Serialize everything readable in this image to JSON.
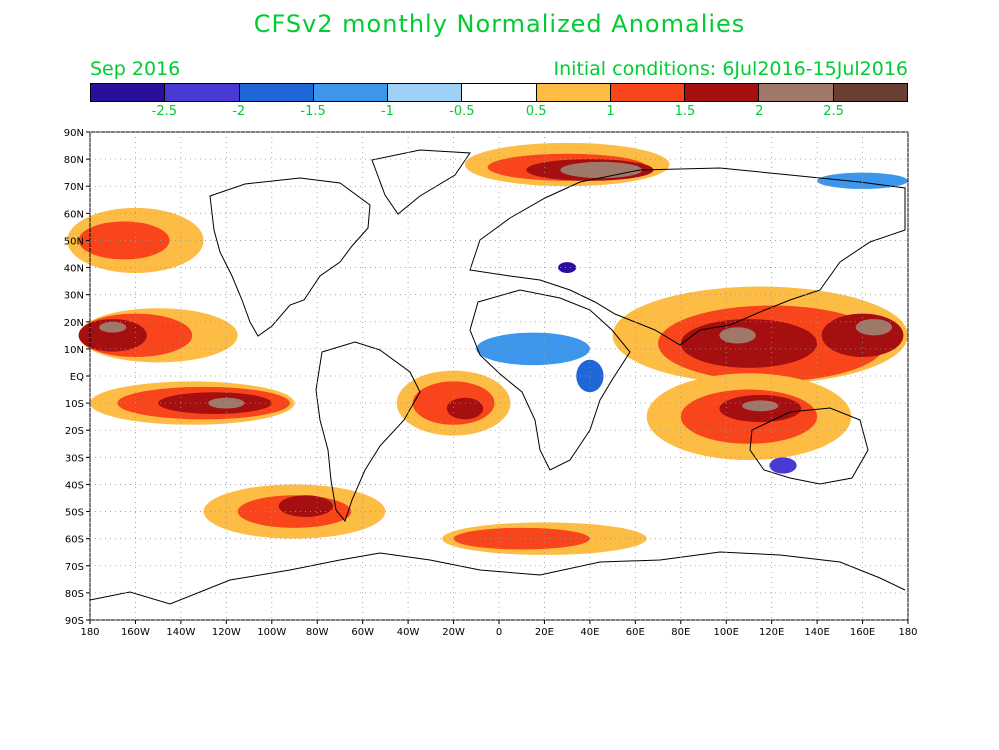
{
  "title": "CFSv2 monthly Normalized Anomalies",
  "valid_month": "Sep 2016",
  "initial_conditions": "Initial conditions: 6Jul2016-15Jul2016",
  "colorbar": {
    "colors": [
      "#2a0f9c",
      "#4a3ad4",
      "#1f66d6",
      "#3c96ec",
      "#9fd1f7",
      "#ffffff",
      "#fdbc44",
      "#f8451b",
      "#a50f0f",
      "#a0786a",
      "#6a3f33"
    ],
    "labels": [
      "-2.5",
      "-2",
      "-1.5",
      "-1",
      "-0.5",
      "0.5",
      "1",
      "1.5",
      "2",
      "2.5"
    ]
  },
  "map": {
    "lat_labels": [
      "90N",
      "80N",
      "70N",
      "60N",
      "50N",
      "40N",
      "30N",
      "20N",
      "10N",
      "EQ",
      "10S",
      "20S",
      "30S",
      "40S",
      "50S",
      "60S",
      "70S",
      "80S",
      "90S"
    ],
    "lon_labels": [
      "180",
      "160W",
      "140W",
      "120W",
      "100W",
      "80W",
      "60W",
      "40W",
      "20W",
      "0",
      "20E",
      "40E",
      "60E",
      "80E",
      "100E",
      "120E",
      "140E",
      "160E",
      "180"
    ],
    "lon_range": [
      -180,
      180
    ],
    "lat_range": [
      -90,
      90
    ],
    "grid": "dotted",
    "anomaly_regions": [
      {
        "level": "1",
        "lon": -135,
        "lat": -10,
        "rlon": 45,
        "rlat": 8
      },
      {
        "level": "1.5",
        "lon": -130,
        "lat": -10,
        "rlon": 38,
        "rlat": 6
      },
      {
        "level": "2",
        "lon": -125,
        "lat": -10,
        "rlon": 25,
        "rlat": 4
      },
      {
        "level": "2.5",
        "lon": -120,
        "lat": -10,
        "rlon": 8,
        "rlat": 2
      },
      {
        "level": "1",
        "lon": -150,
        "lat": 15,
        "rlon": 35,
        "rlat": 10
      },
      {
        "level": "1.5",
        "lon": -160,
        "lat": 15,
        "rlon": 25,
        "rlat": 8
      },
      {
        "level": "2",
        "lon": -170,
        "lat": 15,
        "rlon": 15,
        "rlat": 6
      },
      {
        "level": "2.5",
        "lon": -170,
        "lat": 18,
        "rlon": 6,
        "rlat": 2
      },
      {
        "level": "1",
        "lon": -160,
        "lat": 50,
        "rlon": 30,
        "rlat": 12
      },
      {
        "level": "1.5",
        "lon": -165,
        "lat": 50,
        "rlon": 20,
        "rlat": 7
      },
      {
        "level": "1",
        "lon": -20,
        "lat": -10,
        "rlon": 25,
        "rlat": 12
      },
      {
        "level": "1.5",
        "lon": -20,
        "lat": -10,
        "rlon": 18,
        "rlat": 8
      },
      {
        "level": "2",
        "lon": -15,
        "lat": -12,
        "rlon": 8,
        "rlat": 4
      },
      {
        "level": "1",
        "lon": 115,
        "lat": 15,
        "rlon": 65,
        "rlat": 18
      },
      {
        "level": "1.5",
        "lon": 120,
        "lat": 12,
        "rlon": 50,
        "rlat": 14
      },
      {
        "level": "2",
        "lon": 110,
        "lat": 12,
        "rlon": 30,
        "rlat": 9
      },
      {
        "level": "2.5",
        "lon": 105,
        "lat": 15,
        "rlon": 8,
        "rlat": 3
      },
      {
        "level": "2",
        "lon": 160,
        "lat": 15,
        "rlon": 18,
        "rlat": 8
      },
      {
        "level": "2.5",
        "lon": 165,
        "lat": 18,
        "rlon": 8,
        "rlat": 3
      },
      {
        "level": "1",
        "lon": 110,
        "lat": -15,
        "rlon": 45,
        "rlat": 16
      },
      {
        "level": "1.5",
        "lon": 110,
        "lat": -15,
        "rlon": 30,
        "rlat": 10
      },
      {
        "level": "2",
        "lon": 115,
        "lat": -12,
        "rlon": 18,
        "rlat": 5
      },
      {
        "level": "2.5",
        "lon": 115,
        "lat": -11,
        "rlon": 8,
        "rlat": 2
      },
      {
        "level": "1",
        "lon": 30,
        "lat": 78,
        "rlon": 45,
        "rlat": 8
      },
      {
        "level": "1.5",
        "lon": 30,
        "lat": 77,
        "rlon": 35,
        "rlat": 5
      },
      {
        "level": "2",
        "lon": 40,
        "lat": 76,
        "rlon": 28,
        "rlat": 4
      },
      {
        "level": "2.5",
        "lon": 45,
        "lat": 76,
        "rlon": 18,
        "rlat": 3
      },
      {
        "level": "1",
        "lon": 20,
        "lat": -60,
        "rlon": 45,
        "rlat": 6
      },
      {
        "level": "1.5",
        "lon": 10,
        "lat": -60,
        "rlon": 30,
        "rlat": 4
      },
      {
        "level": "1",
        "lon": -90,
        "lat": -50,
        "rlon": 40,
        "rlat": 10
      },
      {
        "level": "1.5",
        "lon": -90,
        "lat": -50,
        "rlon": 25,
        "rlat": 6
      },
      {
        "level": "2",
        "lon": -85,
        "lat": -48,
        "rlon": 12,
        "rlat": 4
      },
      {
        "level": "-1",
        "lon": 15,
        "lat": 10,
        "rlon": 25,
        "rlat": 6
      },
      {
        "level": "-1.5",
        "lon": 40,
        "lat": 0,
        "rlon": 6,
        "rlat": 6
      },
      {
        "level": "-2",
        "lon": 125,
        "lat": -33,
        "rlon": 6,
        "rlat": 3
      },
      {
        "level": "-2.5",
        "lon": 30,
        "lat": 40,
        "rlon": 4,
        "rlat": 2
      },
      {
        "level": "-1",
        "lon": 160,
        "lat": 72,
        "rlon": 20,
        "rlat": 3
      }
    ]
  }
}
